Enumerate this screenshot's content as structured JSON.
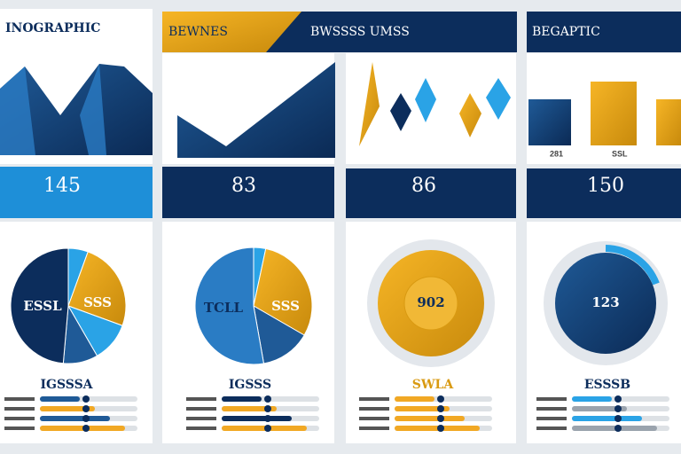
{
  "panels": [
    {
      "title": "INOGRAPHIC",
      "stat": "145",
      "pie_label": "ESSL",
      "pie_label_2": "SSS",
      "list_title": "IGSSSA"
    },
    {
      "title": "BEWNES",
      "subtitle": "BWSSSS UMSS",
      "stat": "83",
      "pie_label": "TCLL",
      "pie_label_2": "SSS",
      "list_title": "IGSSS"
    },
    {
      "stat": "86",
      "pie_label": "902",
      "list_title": "SWLA"
    },
    {
      "title": "BEGAPTIC",
      "stat": "150",
      "pie_label": "123",
      "axis_labels": [
        "281",
        "SSL"
      ],
      "list_title": "ESSSB"
    }
  ]
}
